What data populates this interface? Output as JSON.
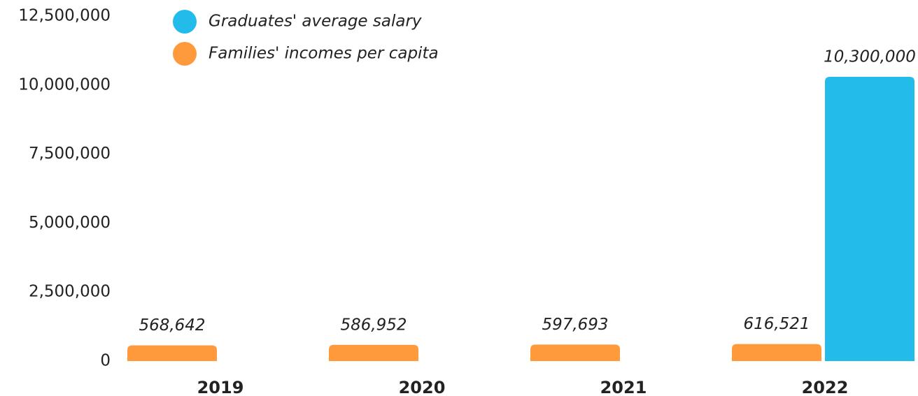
{
  "chart_data": {
    "type": "bar",
    "categories": [
      "2019",
      "2020",
      "2021",
      "2022"
    ],
    "series": [
      {
        "name": "Families' incomes per capita",
        "color": "#ff9a3c",
        "values": [
          568642,
          586952,
          597693,
          616521
        ],
        "value_labels": [
          "568,642",
          "586,952",
          "597,693",
          "616,521"
        ]
      },
      {
        "name": "Graduates' average salary",
        "color": "#22bbea",
        "values": [
          null,
          null,
          null,
          10300000
        ],
        "value_labels": [
          null,
          null,
          null,
          "10,300,000"
        ]
      }
    ],
    "legend_order": [
      1,
      0
    ],
    "ylim": [
      0,
      12500000
    ],
    "yticks": [
      0,
      {
        "value": 2500000,
        "label": "2,500,000"
      },
      {
        "value": 5000000,
        "label": "5,000,000"
      },
      {
        "value": 7500000,
        "label": "7,500,000"
      },
      {
        "value": 10000000,
        "label": "10,000,000"
      },
      {
        "value": 12500000,
        "label": "12,500,000"
      }
    ],
    "grid": false,
    "legend": "top-left"
  }
}
